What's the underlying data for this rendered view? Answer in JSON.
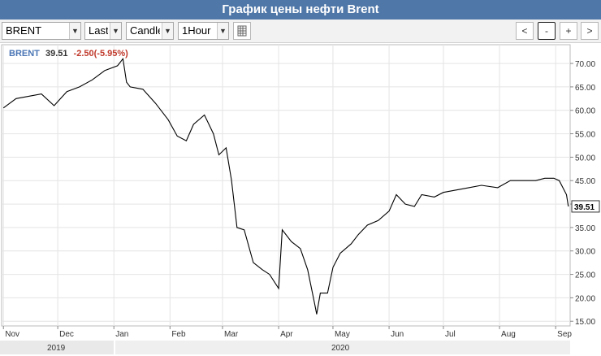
{
  "title": "График цены нефти Brent",
  "toolbar": {
    "symbol": "BRENT",
    "price_type": "Last",
    "chart_style": "Candle",
    "interval": "1Hour",
    "nav_prev": "<",
    "zoom_out": "-",
    "zoom_in": "+",
    "nav_next": ">"
  },
  "legend": {
    "symbol": "BRENT",
    "last": "39.51",
    "change": "-2.50(-5.95%)"
  },
  "last_price_label": "39.51",
  "colors": {
    "title_bar": "#4f77a8",
    "legend_symbol": "#4a76b5",
    "change_negative": "#c0392b",
    "line": "#000000"
  },
  "chart_data": {
    "type": "line",
    "title": "",
    "xlabel": "",
    "ylabel": "",
    "ylim": [
      14,
      74
    ],
    "grid": true,
    "y_ticks": [
      "15.00",
      "20.00",
      "25.00",
      "30.00",
      "35.00",
      "40.00",
      "45.00",
      "50.00",
      "55.00",
      "60.00",
      "65.00",
      "70.00"
    ],
    "x_ticks": [
      "Nov",
      "Dec",
      "Jan",
      "Feb",
      "Mar",
      "Apr",
      "May",
      "Jun",
      "Jul",
      "Aug",
      "Sep"
    ],
    "years": [
      "2019",
      "2020"
    ],
    "series": [
      {
        "x": [
          "2019-11-01",
          "2019-11-08",
          "2019-11-15",
          "2019-11-22",
          "2019-11-29",
          "2019-12-06",
          "2019-12-13",
          "2019-12-20",
          "2019-12-27",
          "2020-01-03",
          "2020-01-06",
          "2020-01-08",
          "2020-01-10",
          "2020-01-17",
          "2020-01-24",
          "2020-01-31",
          "2020-02-05",
          "2020-02-10",
          "2020-02-14",
          "2020-02-20",
          "2020-02-25",
          "2020-02-28",
          "2020-03-03",
          "2020-03-06",
          "2020-03-09",
          "2020-03-13",
          "2020-03-18",
          "2020-03-23",
          "2020-03-27",
          "2020-04-01",
          "2020-04-03",
          "2020-04-08",
          "2020-04-13",
          "2020-04-17",
          "2020-04-21",
          "2020-04-22",
          "2020-04-24",
          "2020-04-28",
          "2020-05-01",
          "2020-05-05",
          "2020-05-11",
          "2020-05-15",
          "2020-05-20",
          "2020-05-26",
          "2020-06-01",
          "2020-06-05",
          "2020-06-10",
          "2020-06-15",
          "2020-06-19",
          "2020-06-26",
          "2020-07-01",
          "2020-07-08",
          "2020-07-15",
          "2020-07-22",
          "2020-07-31",
          "2020-08-07",
          "2020-08-14",
          "2020-08-21",
          "2020-08-26",
          "2020-08-31",
          "2020-09-03",
          "2020-09-07",
          "2020-09-08"
        ],
        "y": [
          60.5,
          62.5,
          63.0,
          63.5,
          61.0,
          64.0,
          65.0,
          66.5,
          68.5,
          69.5,
          71.0,
          66.0,
          65.0,
          64.5,
          61.5,
          58.0,
          54.5,
          53.5,
          57.0,
          59.0,
          55.0,
          50.5,
          52.0,
          45.0,
          35.0,
          34.5,
          27.5,
          26.0,
          25.0,
          22.0,
          34.5,
          32.0,
          30.5,
          26.0,
          18.5,
          16.5,
          21.0,
          21.0,
          26.5,
          29.5,
          31.5,
          33.5,
          35.5,
          36.5,
          38.5,
          42.0,
          40.0,
          39.5,
          42.0,
          41.5,
          42.5,
          43.0,
          43.5,
          44.0,
          43.5,
          45.0,
          45.0,
          45.0,
          45.5,
          45.5,
          45.0,
          42.0,
          39.5
        ]
      }
    ]
  }
}
